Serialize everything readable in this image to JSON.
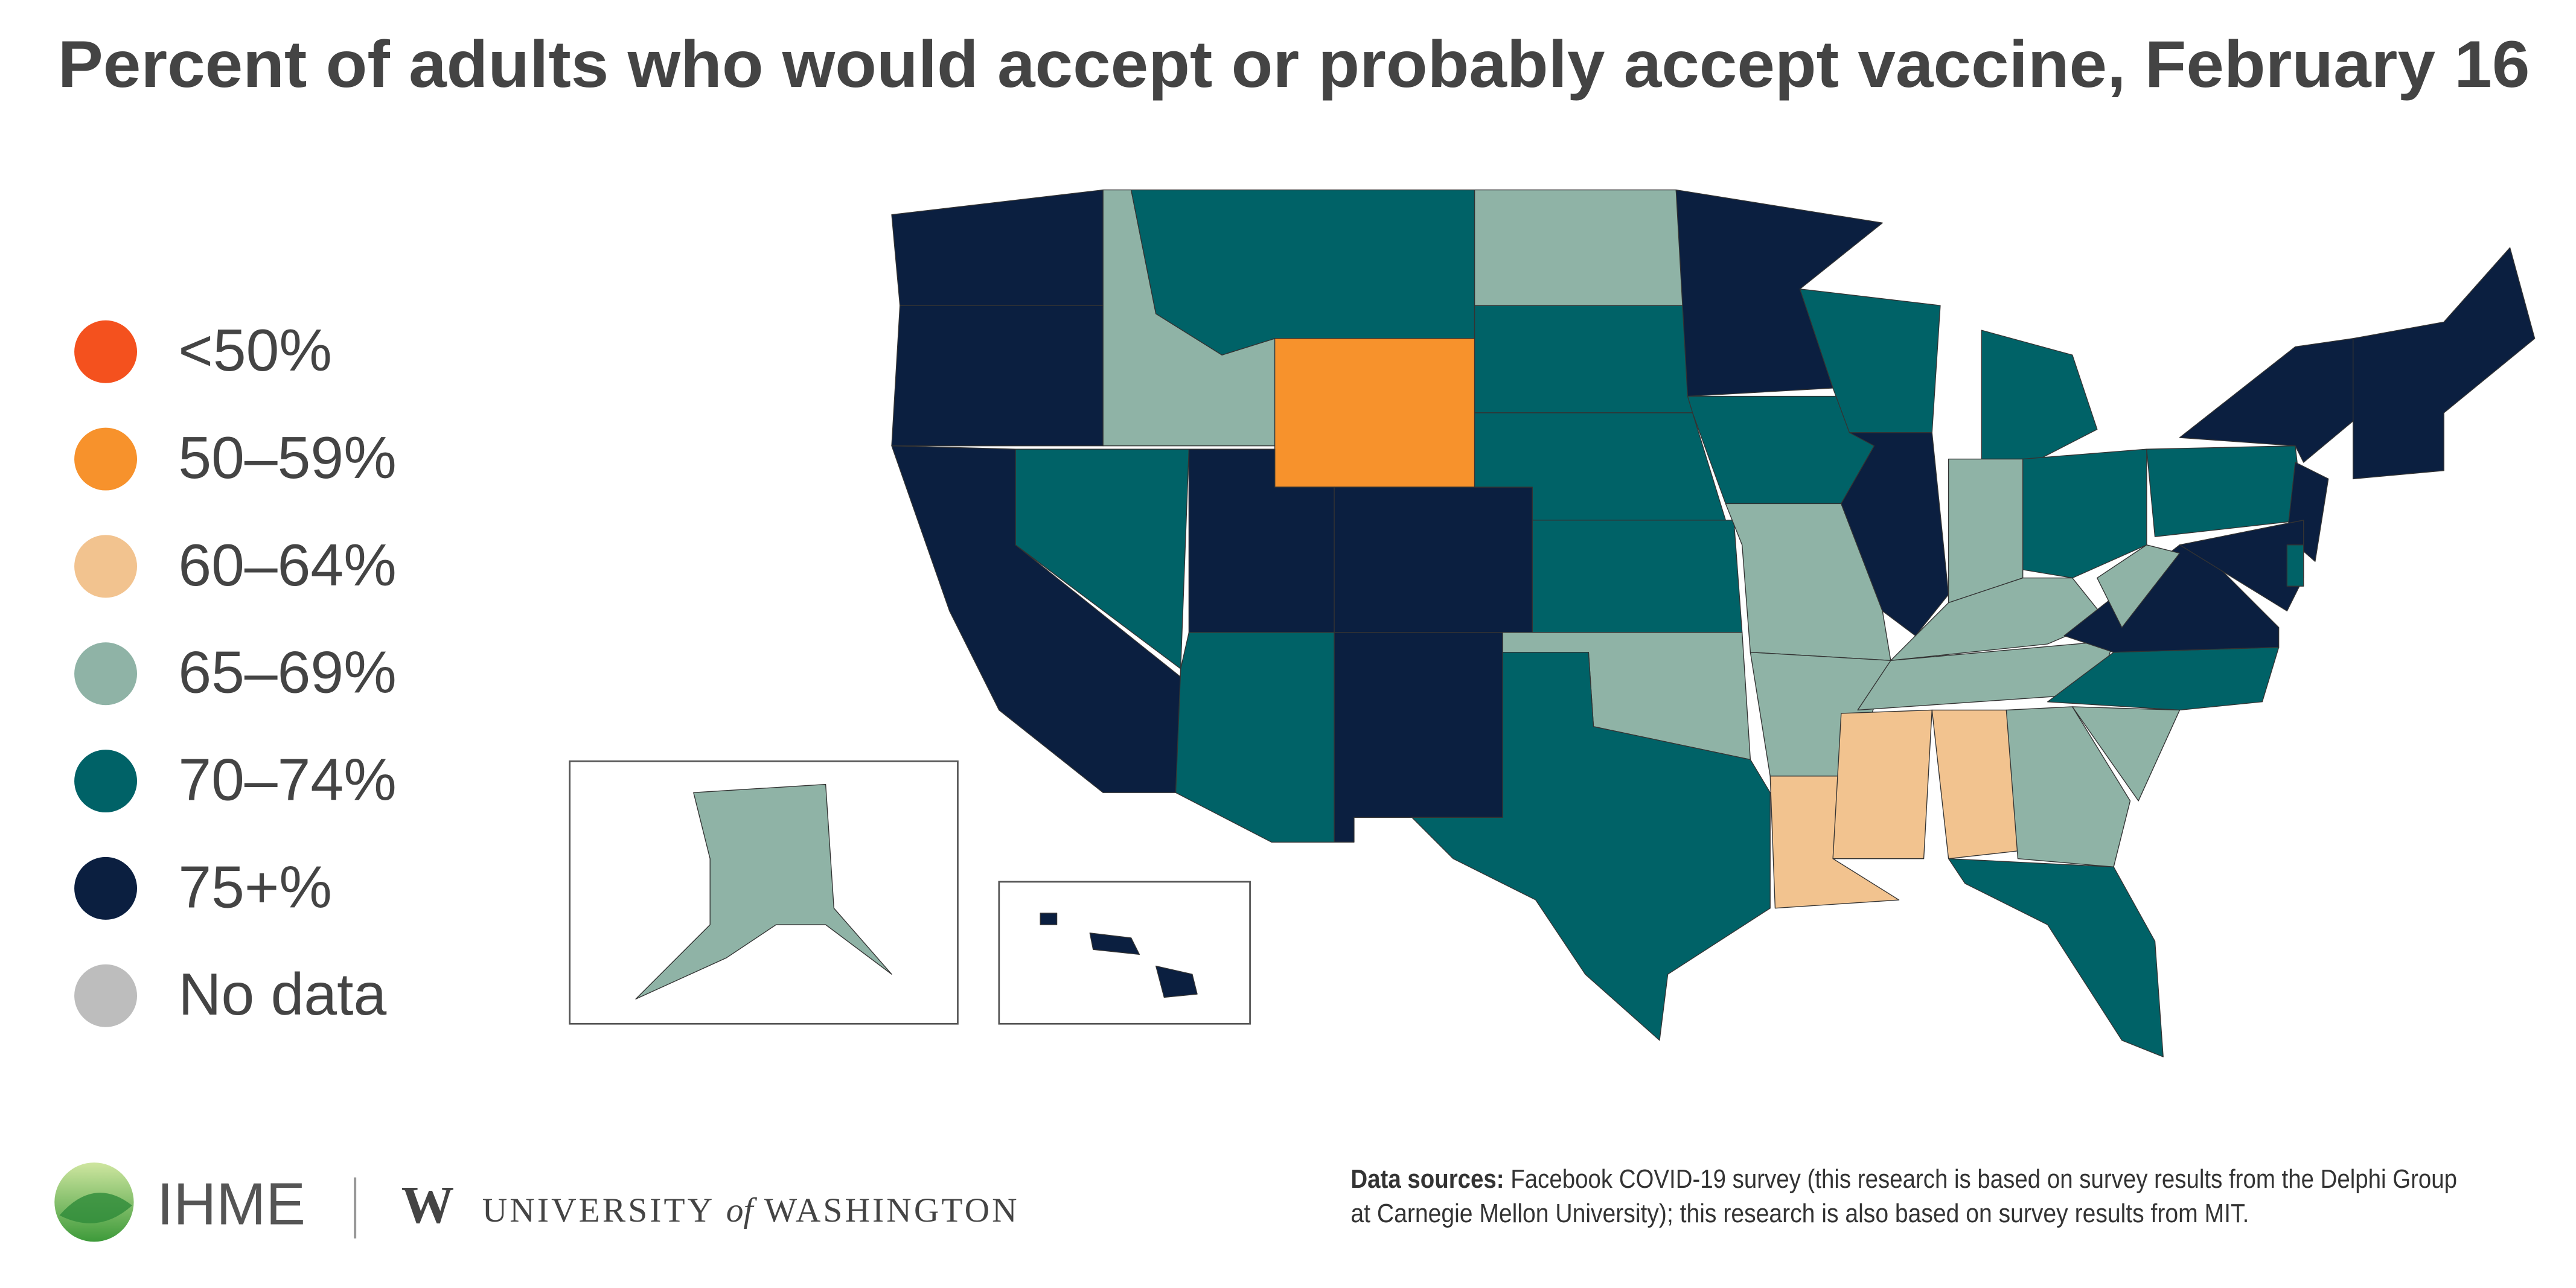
{
  "chart_data": {
    "type": "choropleth",
    "title": "Percent of adults who would accept or probably accept vaccine, February 16",
    "legend": [
      {
        "label": "<50%",
        "color": "#f4511e"
      },
      {
        "label": "50–59%",
        "color": "#f7922c"
      },
      {
        "label": "60–64%",
        "color": "#f2c38f"
      },
      {
        "label": "65–69%",
        "color": "#8fb3a6"
      },
      {
        "label": "70–74%",
        "color": "#006267"
      },
      {
        "label": "75+%",
        "color": "#0b1f40"
      },
      {
        "label": "No data",
        "color": "#bdbdbd"
      }
    ],
    "regions": [
      {
        "color": "#0b1f40"
      },
      {
        "color": "#0b1f40"
      },
      {
        "color": "#0b1f40"
      },
      {
        "color": "#8fb3a6"
      },
      {
        "color": "#006267"
      },
      {
        "color": "#006267"
      },
      {
        "color": "#f7922c"
      },
      {
        "color": "#0b1f40"
      },
      {
        "color": "#0b1f40"
      },
      {
        "color": "#006267"
      },
      {
        "color": "#0b1f40"
      },
      {
        "color": "#8fb3a6"
      },
      {
        "color": "#006267"
      },
      {
        "color": "#006267"
      },
      {
        "color": "#006267"
      },
      {
        "color": "#8fb3a6"
      },
      {
        "color": "#006267"
      },
      {
        "color": "#0b1f40"
      },
      {
        "color": "#006267"
      },
      {
        "color": "#8fb3a6"
      },
      {
        "color": "#8fb3a6"
      },
      {
        "color": "#f2c38f"
      },
      {
        "color": "#006267"
      },
      {
        "color": "#0b1f40"
      },
      {
        "color": "#006267"
      },
      {
        "color": "#8fb3a6"
      },
      {
        "color": "#006267"
      },
      {
        "color": "#8fb3a6"
      },
      {
        "color": "#8fb3a6"
      },
      {
        "color": "#f2c38f"
      },
      {
        "color": "#f2c38f"
      },
      {
        "color": "#8fb3a6"
      },
      {
        "color": "#006267"
      },
      {
        "color": "#8fb3a6"
      },
      {
        "color": "#006267"
      },
      {
        "color": "#0b1f40"
      },
      {
        "color": "#8fb3a6"
      },
      {
        "color": "#006267"
      },
      {
        "color": "#0b1f40"
      },
      {
        "color": "#0b1f40"
      },
      {
        "color": "#0b1f40"
      },
      {
        "color": "#006267"
      },
      {
        "color": "#0b1f40"
      },
      {
        "color": "#8fb3a6"
      },
      {
        "color": "#0b1f40"
      },
      {
        "color": "#0b1f40"
      },
      {
        "color": "#0b1f40"
      }
    ]
  },
  "footer": {
    "logo_text": "IHME",
    "university_mark": "W",
    "university": [
      "UNIVERSITY",
      "of",
      "WASHINGTON"
    ],
    "sources_label": "Data sources:",
    "sources_lines": [
      "Facebook COVID-19 survey (this research is based on survey results from the Delphi Group",
      "at Carnegie Mellon University); this research is also based on survey results from MIT."
    ]
  }
}
